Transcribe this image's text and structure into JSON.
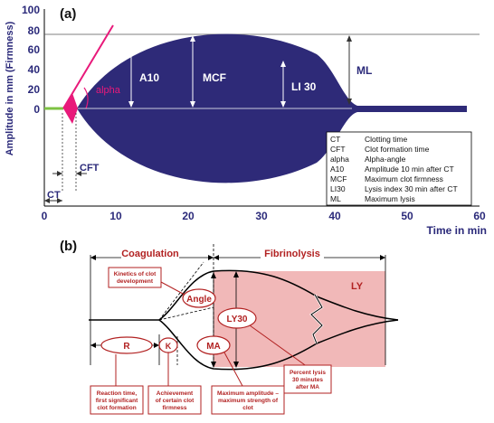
{
  "panel_a": {
    "label": "(a)",
    "ylabel": "Amplitude in mm (Firmness)",
    "xlabel": "Time in min",
    "y_ticks": [
      "100",
      "80",
      "60",
      "40",
      "20",
      "0"
    ],
    "x_ticks": [
      "0",
      "10",
      "20",
      "30",
      "40",
      "50",
      "60"
    ],
    "labels": {
      "alpha": "alpha",
      "a10": "A10",
      "mcf": "MCF",
      "li30": "LI 30",
      "ml": "ML",
      "cft": "CFT",
      "ct": "CT"
    },
    "legend": [
      {
        "abbr": "CT",
        "desc": "Clotting time"
      },
      {
        "abbr": "CFT",
        "desc": "Clot formation time"
      },
      {
        "abbr": "alpha",
        "desc": "Alpha-angle"
      },
      {
        "abbr": "A10",
        "desc": "Amplitude 10 min after CT"
      },
      {
        "abbr": "MCF",
        "desc": "Maximum clot firmness"
      },
      {
        "abbr": "LI30",
        "desc": "Lysis index 30 min after CT"
      },
      {
        "abbr": "ML",
        "desc": "Maximum lysis"
      }
    ],
    "colors": {
      "fill": "#2e2a78",
      "alpha": "#e8197a",
      "baseline_green": "#7dc242"
    }
  },
  "panel_b": {
    "label": "(b)",
    "coagulation": "Coagulation",
    "fibrinolysis": "Fibrinolysis",
    "ly": "LY",
    "angle": "Angle",
    "ly30": "LY30",
    "ma": "MA",
    "r": "R",
    "k": "K",
    "callouts": {
      "kinetics": [
        "Kinetics of clot",
        "development"
      ],
      "reaction": [
        "Reaction time,",
        "first significant",
        "clot formation"
      ],
      "achievement": [
        "Achievement",
        "of certain clot",
        "firmness"
      ],
      "max_amp": [
        "Maximum amplitude –",
        "maximum strength of",
        "clot"
      ],
      "percent_lysis": [
        "Percent lysis",
        "30 minutes",
        "after MA"
      ]
    },
    "colors": {
      "red": "#b22222",
      "pink": "#f1b8b8"
    }
  }
}
